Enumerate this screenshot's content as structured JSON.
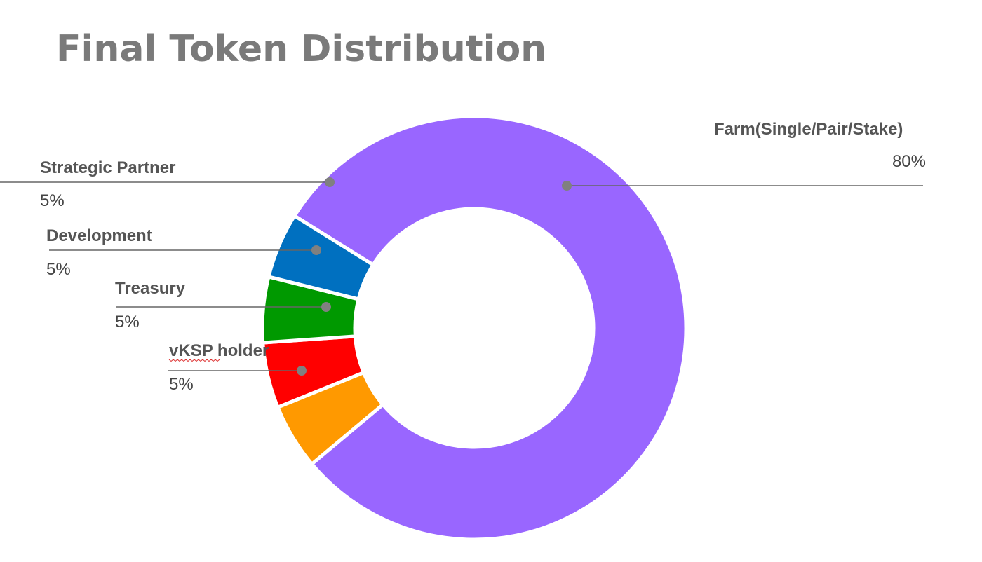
{
  "chart_data": {
    "type": "pie",
    "donut": true,
    "title": "Final Token Distribution",
    "unit": "%",
    "slices": [
      {
        "label": "Farm(Single/Pair/Stake)",
        "value": 80,
        "display": "80%",
        "color": "#9966ff"
      },
      {
        "label": "vKSP holder",
        "value": 5,
        "display": "5%",
        "color": "#ff9900"
      },
      {
        "label": "Treasury",
        "value": 5,
        "display": "5%",
        "color": "#ff0000"
      },
      {
        "label": "Development",
        "value": 5,
        "display": "5%",
        "color": "#009900"
      },
      {
        "label": "Strategic Partner",
        "value": 5,
        "display": "5%",
        "color": "#0070c0"
      }
    ],
    "legend": "none"
  }
}
